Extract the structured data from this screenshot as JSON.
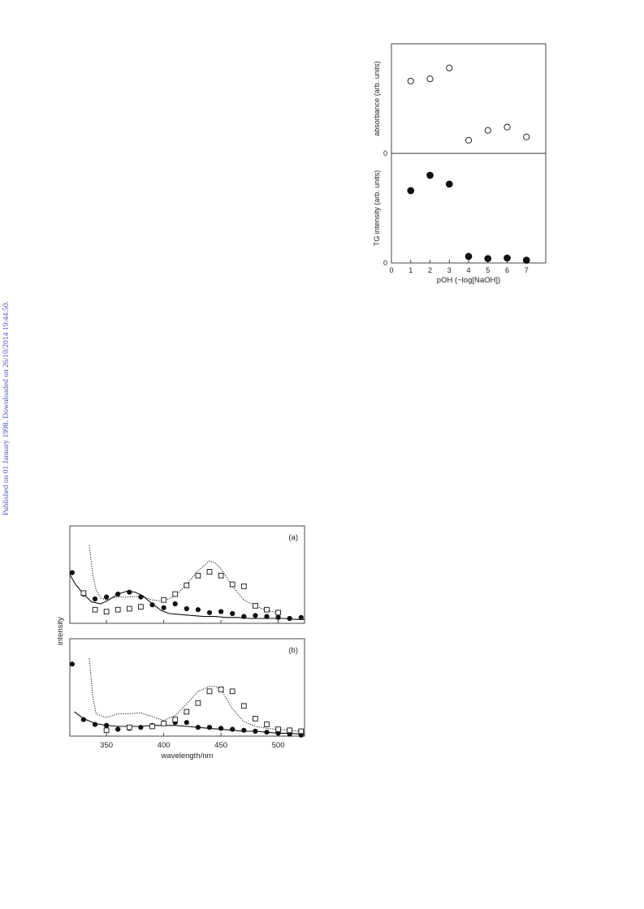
{
  "watermark": "Published on 01 January 1998. Downloaded on 26/10/2014 19:44:50.",
  "chart_data": [
    {
      "type": "scatter",
      "id": "ph-panels",
      "xlabel": "pOH (−log[NaOH])",
      "xlim": [
        0,
        8
      ],
      "x_ticks": [
        "0",
        "1",
        "2",
        "3",
        "4",
        "5",
        "6",
        "7"
      ],
      "panels": [
        {
          "ylabel": "absorbance (arb. units)",
          "y_tick": "0",
          "ylim": [
            0,
            1
          ],
          "marker": "open-circle",
          "x": [
            1,
            2,
            3,
            4,
            5,
            6,
            7
          ],
          "values": [
            0.66,
            0.68,
            0.78,
            0.12,
            0.21,
            0.24,
            0.15
          ]
        },
        {
          "ylabel": "TG intensity (arb. units)",
          "y_tick": "0",
          "ylim": [
            0,
            1
          ],
          "marker": "filled-circle",
          "x": [
            1,
            2,
            3,
            4,
            5,
            6,
            7
          ],
          "values": [
            0.66,
            0.8,
            0.72,
            0.06,
            0.04,
            0.045,
            0.025
          ]
        }
      ]
    },
    {
      "type": "line",
      "id": "spectra",
      "xlabel": "wavelength/nm",
      "ylabel": "intensity",
      "xlim": [
        318,
        523
      ],
      "x_ticks": [
        "350",
        "400",
        "450",
        "500"
      ],
      "panels": [
        {
          "label": "(a)",
          "ylim": [
            0,
            1
          ],
          "solid_line": {
            "x": [
              318,
              323,
              330,
              337,
              345,
              352,
              360,
              368,
              375,
              382,
              390,
              398,
              405,
              415,
              425,
              435,
              445,
              455,
              465,
              475,
              485,
              495,
              505,
              515,
              523
            ],
            "y": [
              0.5,
              0.4,
              0.3,
              0.22,
              0.2,
              0.24,
              0.3,
              0.33,
              0.32,
              0.28,
              0.2,
              0.13,
              0.1,
              0.09,
              0.08,
              0.07,
              0.07,
              0.06,
              0.06,
              0.05,
              0.05,
              0.05,
              0.05,
              0.04,
              0.04
            ]
          },
          "dotted_line": {
            "x": [
              335,
              338,
              341,
              345,
              350,
              355,
              360,
              370,
              380,
              390,
              400,
              410,
              420,
              430,
              440,
              445,
              450,
              460,
              470,
              480,
              490,
              500
            ],
            "y": [
              0.8,
              0.5,
              0.34,
              0.26,
              0.24,
              0.26,
              0.27,
              0.27,
              0.28,
              0.24,
              0.23,
              0.28,
              0.4,
              0.54,
              0.64,
              0.62,
              0.56,
              0.38,
              0.24,
              0.18,
              0.13,
              0.11
            ]
          },
          "filled_markers": {
            "x": [
              320,
              330,
              340,
              350,
              360,
              370,
              380,
              390,
              400,
              410,
              420,
              430,
              440,
              450,
              460,
              470,
              480,
              490,
              500,
              510,
              520
            ],
            "y": [
              0.52,
              0.3,
              0.25,
              0.27,
              0.3,
              0.32,
              0.27,
              0.19,
              0.16,
              0.2,
              0.15,
              0.14,
              0.11,
              0.12,
              0.1,
              0.07,
              0.08,
              0.07,
              0.06,
              0.05,
              0.06
            ]
          },
          "open_markers": {
            "x": [
              330,
              340,
              350,
              360,
              370,
              380,
              400,
              410,
              420,
              430,
              440,
              450,
              460,
              470,
              480,
              490,
              500
            ],
            "y": [
              0.31,
              0.14,
              0.12,
              0.14,
              0.15,
              0.17,
              0.24,
              0.3,
              0.39,
              0.49,
              0.53,
              0.49,
              0.4,
              0.38,
              0.18,
              0.14,
              0.11
            ]
          }
        },
        {
          "label": "(b)",
          "ylim": [
            0,
            1
          ],
          "solid_line": {
            "x": [
              322,
              330,
              340,
              350,
              360,
              370,
              380,
              390,
              400,
              410,
              420,
              430,
              440,
              450,
              460,
              470,
              480,
              490,
              500,
              510,
              520,
              523
            ],
            "y": [
              0.25,
              0.18,
              0.13,
              0.11,
              0.1,
              0.1,
              0.1,
              0.11,
              0.11,
              0.11,
              0.1,
              0.09,
              0.08,
              0.07,
              0.06,
              0.05,
              0.05,
              0.04,
              0.03,
              0.03,
              0.02,
              0.02
            ]
          },
          "dotted_line": {
            "x": [
              335,
              338,
              341,
              345,
              350,
              355,
              360,
              370,
              380,
              390,
              400,
              410,
              420,
              430,
              440,
              445,
              450,
              460,
              470,
              480,
              490,
              500,
              510,
              520
            ],
            "y": [
              0.8,
              0.4,
              0.23,
              0.21,
              0.19,
              0.21,
              0.23,
              0.23,
              0.24,
              0.2,
              0.16,
              0.21,
              0.33,
              0.46,
              0.51,
              0.51,
              0.48,
              0.28,
              0.15,
              0.1,
              0.08,
              0.07,
              0.06,
              0.05
            ]
          },
          "filled_markers": {
            "x": [
              320,
              330,
              340,
              350,
              360,
              370,
              380,
              390,
              400,
              410,
              420,
              430,
              440,
              450,
              460,
              470,
              480,
              490,
              500,
              510,
              520
            ],
            "y": [
              0.74,
              0.17,
              0.12,
              0.11,
              0.07,
              0.08,
              0.09,
              0.11,
              0.13,
              0.14,
              0.14,
              0.09,
              0.09,
              0.08,
              0.07,
              0.06,
              0.05,
              0.04,
              0.03,
              0.02,
              0.01
            ]
          },
          "open_markers": {
            "x": [
              350,
              370,
              390,
              400,
              410,
              420,
              430,
              440,
              450,
              460,
              470,
              480,
              490,
              500,
              510,
              520
            ],
            "y": [
              0.06,
              0.09,
              0.1,
              0.13,
              0.17,
              0.25,
              0.34,
              0.46,
              0.48,
              0.46,
              0.31,
              0.18,
              0.12,
              0.07,
              0.06,
              0.05
            ]
          }
        }
      ]
    }
  ]
}
